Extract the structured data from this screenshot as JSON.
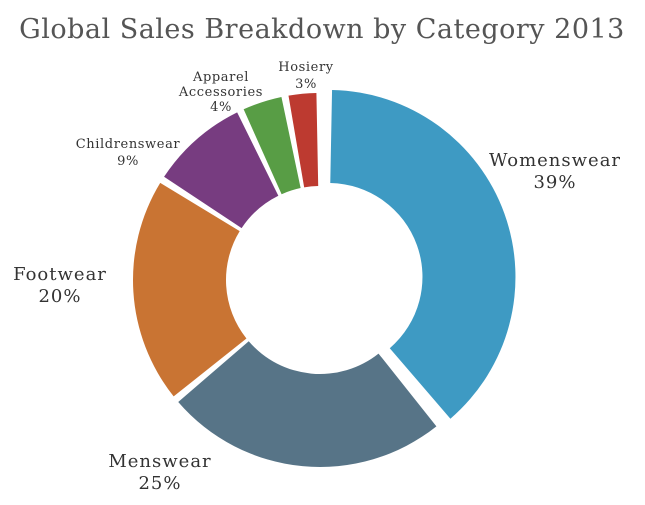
{
  "chart_data": {
    "type": "pie",
    "variant": "donut",
    "title": "Global Sales Breakdown by Category 2013",
    "categories": [
      "Womenswear",
      "Menswear",
      "Footwear",
      "Childrenswear",
      "Apparel Accessories",
      "Hosiery"
    ],
    "values": [
      39,
      25,
      20,
      9,
      4,
      3
    ],
    "value_labels": [
      "39%",
      "25%",
      "20%",
      "9%",
      "4%",
      "3%"
    ],
    "colors": [
      "#3e9ac3",
      "#577487",
      "#c97433",
      "#773c80",
      "#589d45",
      "#bd3a30"
    ],
    "exploded": [
      "Womenswear"
    ]
  }
}
